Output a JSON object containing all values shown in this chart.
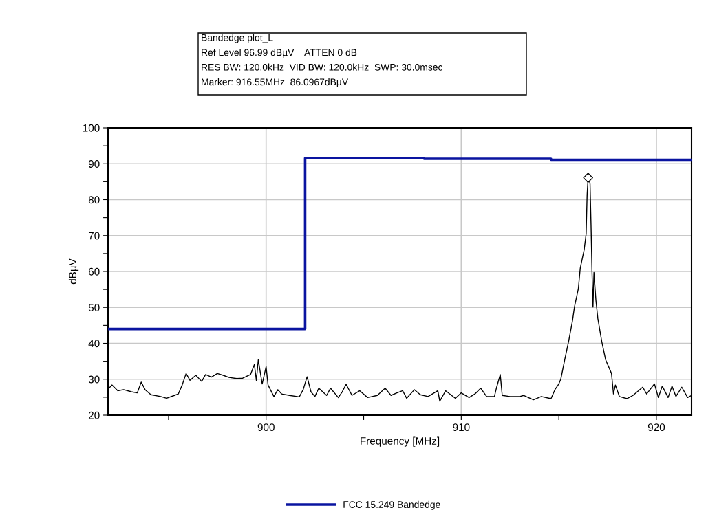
{
  "chart_data": {
    "type": "line",
    "xlabel": "Frequency [MHz]",
    "ylabel": "dBµV",
    "annotations": [
      "Bandedge plot_L",
      "Ref Level 96.99 dBµV    ATTEN 0 dB",
      "RES BW: 120.0kHz  VID BW: 120.0kHz  SWP: 30.0msec",
      "Marker: 916.55MHz  86.0967dBµV"
    ],
    "xlim": [
      891.9,
      921.8
    ],
    "ylim": [
      20,
      100
    ],
    "xticks": [
      {
        "value": 895,
        "label": null
      },
      900,
      {
        "value": 905,
        "label": null
      },
      910,
      {
        "value": 915,
        "label": null
      },
      920
    ],
    "yticks": [
      20,
      {
        "value": 25,
        "label": null
      },
      30,
      {
        "value": 35,
        "label": null
      },
      40,
      {
        "value": 45,
        "label": null
      },
      50,
      {
        "value": 55,
        "label": null
      },
      60,
      {
        "value": 65,
        "label": null
      },
      70,
      {
        "value": 75,
        "label": null
      },
      80,
      {
        "value": 85,
        "label": null
      },
      90,
      {
        "value": 95,
        "label": null
      },
      100
    ],
    "grid": true,
    "legend": "bottom",
    "series": [
      {
        "color": "#000000",
        "x": [
          891.9,
          892.1,
          892.4,
          892.7,
          893.1,
          893.4,
          893.6,
          893.8,
          894.1,
          894.6,
          894.9,
          895.3,
          895.5,
          895.7,
          895.9,
          896.1,
          896.4,
          896.7,
          896.9,
          897.2,
          897.5,
          897.8,
          898.1,
          898.5,
          898.8,
          899.2,
          899.4,
          899.5,
          899.6,
          899.8,
          900.0,
          900.1,
          900.4,
          900.6,
          900.8,
          901.2,
          901.7,
          901.9,
          902.1,
          902.3,
          902.5,
          902.7,
          903.1,
          903.3,
          903.7,
          903.9,
          904.1,
          904.4,
          904.8,
          905.2,
          905.7,
          906.1,
          906.4,
          906.7,
          907.0,
          907.2,
          907.6,
          907.9,
          908.3,
          908.8,
          908.9,
          909.2,
          909.7,
          910.0,
          910.4,
          910.7,
          911.0,
          911.3,
          911.7,
          911.8,
          912.0,
          912.1,
          912.5,
          913.0,
          913.2,
          913.7,
          914.1,
          914.6,
          914.8,
          915.0,
          915.1,
          915.3,
          915.5,
          915.7,
          915.8,
          916.0,
          916.1,
          916.3,
          916.4,
          916.45,
          916.5,
          916.6,
          916.65,
          916.7,
          916.75,
          916.8,
          916.9,
          917.0,
          917.2,
          917.4,
          917.7,
          917.8,
          917.9,
          918.1,
          918.5,
          918.8,
          919.3,
          919.5,
          919.9,
          920.1,
          920.3,
          920.6,
          920.8,
          921.0,
          921.3,
          921.6,
          921.8
        ],
        "values": [
          27.2,
          28.4,
          26.8,
          27.1,
          26.5,
          26.2,
          29.2,
          27.1,
          25.7,
          25.2,
          24.7,
          25.5,
          25.9,
          28.4,
          31.6,
          29.7,
          31.1,
          29.4,
          31.3,
          30.6,
          31.6,
          31.1,
          30.5,
          30.2,
          30.3,
          31.3,
          34.1,
          29.7,
          35.4,
          28.7,
          33.5,
          28.4,
          25.2,
          27.1,
          25.9,
          25.5,
          25.1,
          27.1,
          30.7,
          26.5,
          25.2,
          27.5,
          25.5,
          27.5,
          24.9,
          26.5,
          28.6,
          25.5,
          26.8,
          24.9,
          25.5,
          27.5,
          25.5,
          26.2,
          26.8,
          24.7,
          27.1,
          25.7,
          25.2,
          26.8,
          23.9,
          26.8,
          24.7,
          26.2,
          24.9,
          25.9,
          27.5,
          25.2,
          25.2,
          27.5,
          31.3,
          25.5,
          25.2,
          25.2,
          25.5,
          24.3,
          25.2,
          24.6,
          27.1,
          28.7,
          30.0,
          35.4,
          40.5,
          46.3,
          50.1,
          55.2,
          61.0,
          66.1,
          70.5,
          81.4,
          86.1,
          84.6,
          73.1,
          60.0,
          50.1,
          59.7,
          52.0,
          46.9,
          40.5,
          35.4,
          31.6,
          25.9,
          28.4,
          25.2,
          24.6,
          25.5,
          27.8,
          25.9,
          28.7,
          24.9,
          28.1,
          24.9,
          28.1,
          25.2,
          27.8,
          24.9,
          25.5
        ]
      },
      {
        "type": "step",
        "name": "FCC 15.249 Bandedge",
        "color": "#0a14a0",
        "x": [
          891.9,
          902.0,
          908.1,
          914.6,
          921.8
        ],
        "values": [
          44,
          91.6,
          91.4,
          91.1,
          91.1
        ]
      },
      {
        "type": "scatter",
        "marker": "diamond",
        "color": "#000000",
        "x": [
          916.5
        ],
        "values": [
          86.1
        ]
      }
    ]
  }
}
